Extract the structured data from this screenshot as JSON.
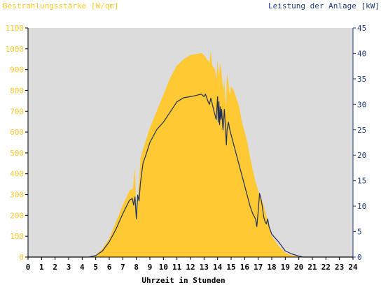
{
  "chart_data": {
    "type": "area",
    "left_axis_title": "Bestrahlungsstärke [W/qm]",
    "right_axis_title": "Leistung der Anlage [kW]",
    "xlabel": "Uhrzeit in Stunden",
    "xlim": [
      0,
      24
    ],
    "x_ticks": [
      "0",
      "1",
      "2",
      "3",
      "4",
      "5",
      "6",
      "7",
      "8",
      "9",
      "10",
      "11",
      "12",
      "13",
      "14",
      "15",
      "16",
      "17",
      "18",
      "19",
      "20",
      "21",
      "22",
      "23",
      "24"
    ],
    "y_left_lim": [
      0,
      1100
    ],
    "y_left_ticks": [
      "0",
      "100",
      "200",
      "300",
      "400",
      "500",
      "600",
      "700",
      "800",
      "900",
      "1000",
      "1100"
    ],
    "y_right_lim": [
      0,
      45
    ],
    "y_right_ticks": [
      "0",
      "5",
      "10",
      "15",
      "20",
      "25",
      "30",
      "35",
      "40",
      "45"
    ],
    "grid": false,
    "colors": {
      "irradiance": "#ffc933",
      "power": "#1f2f5c",
      "plot_background": "#dcdcdc",
      "left_axis_text": "#ffc933",
      "right_axis_text": "#1f3c7a"
    },
    "series": [
      {
        "axis": "left",
        "style": "filled-area",
        "x": [
          0,
          4.5,
          5,
          5.5,
          6,
          6.5,
          7,
          7.5,
          7.75,
          7.9,
          8.0,
          8.1,
          8.2,
          8.3,
          8.5,
          8.7,
          9,
          9.5,
          10,
          10.5,
          11,
          11.5,
          12,
          12.5,
          12.8,
          13,
          13.2,
          13.4,
          13.5,
          13.6,
          13.8,
          13.9,
          14,
          14.1,
          14.2,
          14.3,
          14.4,
          14.5,
          14.6,
          14.7,
          14.8,
          14.9,
          15,
          15.2,
          15.4,
          15.6,
          15.8,
          16,
          16.2,
          16.4,
          16.6,
          16.8,
          17,
          17.1,
          17.2,
          17.4,
          17.6,
          17.8,
          18,
          18.5,
          19,
          19.5,
          20,
          20.3,
          20.5,
          24
        ],
        "values": [
          0,
          0,
          8,
          40,
          90,
          170,
          250,
          320,
          330,
          430,
          210,
          280,
          360,
          470,
          520,
          560,
          620,
          700,
          780,
          860,
          920,
          950,
          970,
          975,
          980,
          970,
          950,
          935,
          990,
          920,
          900,
          850,
          950,
          870,
          930,
          880,
          800,
          850,
          720,
          880,
          840,
          780,
          820,
          800,
          760,
          720,
          650,
          600,
          550,
          480,
          420,
          360,
          320,
          300,
          290,
          250,
          200,
          150,
          100,
          55,
          20,
          8,
          2,
          0,
          0,
          0
        ]
      },
      {
        "axis": "right",
        "style": "line",
        "x": [
          0,
          4.5,
          5,
          5.5,
          6,
          6.5,
          7,
          7.5,
          7.7,
          7.8,
          7.9,
          8.0,
          8.1,
          8.2,
          8.3,
          8.4,
          8.5,
          8.7,
          9,
          9.5,
          10,
          10.5,
          11,
          11.5,
          12,
          12.5,
          12.8,
          13,
          13.1,
          13.2,
          13.3,
          13.4,
          13.5,
          13.6,
          13.7,
          13.8,
          13.9,
          14,
          14.05,
          14.1,
          14.15,
          14.2,
          14.25,
          14.3,
          14.4,
          14.5,
          14.6,
          14.65,
          14.7,
          14.8,
          14.9,
          15,
          15.2,
          15.4,
          15.6,
          15.8,
          16,
          16.2,
          16.4,
          16.6,
          16.8,
          16.9,
          17,
          17.1,
          17.2,
          17.3,
          17.4,
          17.5,
          17.6,
          17.7,
          17.8,
          18,
          18.5,
          19,
          19.5,
          20,
          20.3,
          20.5,
          24
        ],
        "values": [
          0,
          0,
          0.3,
          1.2,
          3,
          5.5,
          8.5,
          11.2,
          11.5,
          10.2,
          11.8,
          7.5,
          12.2,
          11,
          14.5,
          16.5,
          18.5,
          20,
          22.5,
          25,
          26.5,
          28.5,
          30.5,
          31.3,
          31.5,
          31.8,
          32,
          31.5,
          32,
          31.3,
          30.5,
          30,
          31.2,
          30.2,
          29,
          28,
          27,
          31.5,
          26.5,
          30.5,
          26,
          29.5,
          27,
          29,
          25,
          29,
          24.5,
          22,
          25,
          26.5,
          25,
          24,
          22,
          20,
          18,
          16,
          14,
          12,
          10,
          8.5,
          7.5,
          6,
          9,
          12.5,
          11.5,
          10,
          8,
          7,
          6.5,
          7.5,
          6,
          4.5,
          3,
          1.2,
          0.6,
          0.2,
          0,
          0,
          0
        ]
      }
    ]
  }
}
